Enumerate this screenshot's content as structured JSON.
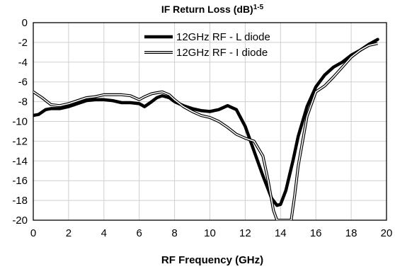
{
  "chart_data": {
    "type": "line",
    "title": "IF Return Loss (dB)",
    "title_superscript": "1-5",
    "xlabel": "RF Frequency (GHz)",
    "ylabel": "",
    "xlim": [
      0,
      20
    ],
    "ylim": [
      -20,
      0
    ],
    "xticks": [
      0,
      2,
      4,
      6,
      8,
      10,
      12,
      14,
      16,
      18,
      20
    ],
    "yticks": [
      0,
      -2,
      -4,
      -6,
      -8,
      -10,
      -12,
      -14,
      -16,
      -18,
      -20
    ],
    "grid": true,
    "legend_position": "top-center",
    "series": [
      {
        "name": "12GHz RF - L diode",
        "style": "thick-black",
        "color": "#000000",
        "x": [
          0,
          0.3,
          0.7,
          1.0,
          1.5,
          2.0,
          2.5,
          3.0,
          3.5,
          4.0,
          4.5,
          5.0,
          5.5,
          6.0,
          6.3,
          6.7,
          7.0,
          7.3,
          7.7,
          8.0,
          8.5,
          9.0,
          9.5,
          10.0,
          10.5,
          11.0,
          11.5,
          12.0,
          12.5,
          13.0,
          13.5,
          13.8,
          14.0,
          14.3,
          14.7,
          15.0,
          15.5,
          16.0,
          16.5,
          17.0,
          17.5,
          18.0,
          18.5,
          19.0,
          19.5
        ],
        "y": [
          -9.4,
          -9.3,
          -8.8,
          -8.7,
          -8.7,
          -8.5,
          -8.2,
          -7.9,
          -7.8,
          -7.8,
          -7.9,
          -8.1,
          -8.1,
          -8.2,
          -8.5,
          -8.0,
          -7.6,
          -7.4,
          -7.6,
          -8.0,
          -8.4,
          -8.7,
          -8.9,
          -9.0,
          -8.8,
          -8.4,
          -8.8,
          -10.5,
          -13.0,
          -15.5,
          -17.8,
          -18.5,
          -18.4,
          -17.0,
          -14.0,
          -11.5,
          -8.5,
          -6.5,
          -5.3,
          -4.5,
          -4.0,
          -3.3,
          -2.8,
          -2.2,
          -1.7
        ]
      },
      {
        "name": "12GHz RF - I diode",
        "style": "double-line",
        "color": "#000000",
        "x": [
          0,
          0.5,
          1.0,
          1.5,
          2.0,
          2.5,
          3.0,
          3.5,
          4.0,
          4.5,
          5.0,
          5.5,
          6.0,
          6.3,
          6.7,
          7.0,
          7.3,
          7.7,
          8.0,
          8.5,
          9.0,
          9.5,
          10.0,
          10.5,
          11.0,
          11.5,
          12.0,
          12.5,
          13.0,
          13.3,
          13.6,
          13.8,
          14.0,
          14.2,
          14.4,
          14.6,
          14.8,
          15.0,
          15.5,
          16.0,
          16.5,
          17.0,
          17.5,
          18.0,
          18.5,
          19.0,
          19.5
        ],
        "y": [
          -7.0,
          -7.6,
          -8.3,
          -8.4,
          -8.2,
          -7.9,
          -7.6,
          -7.5,
          -7.3,
          -7.3,
          -7.3,
          -7.4,
          -7.8,
          -7.5,
          -7.2,
          -7.1,
          -7.0,
          -7.3,
          -7.8,
          -8.5,
          -9.0,
          -9.4,
          -9.6,
          -10.0,
          -10.6,
          -11.3,
          -11.7,
          -12.0,
          -13.5,
          -16.0,
          -19.0,
          -20.0,
          -20.0,
          -20.0,
          -20.0,
          -20.0,
          -17.5,
          -14.5,
          -9.5,
          -7.0,
          -6.4,
          -5.5,
          -4.5,
          -3.5,
          -2.8,
          -2.3,
          -2.1
        ]
      }
    ]
  }
}
